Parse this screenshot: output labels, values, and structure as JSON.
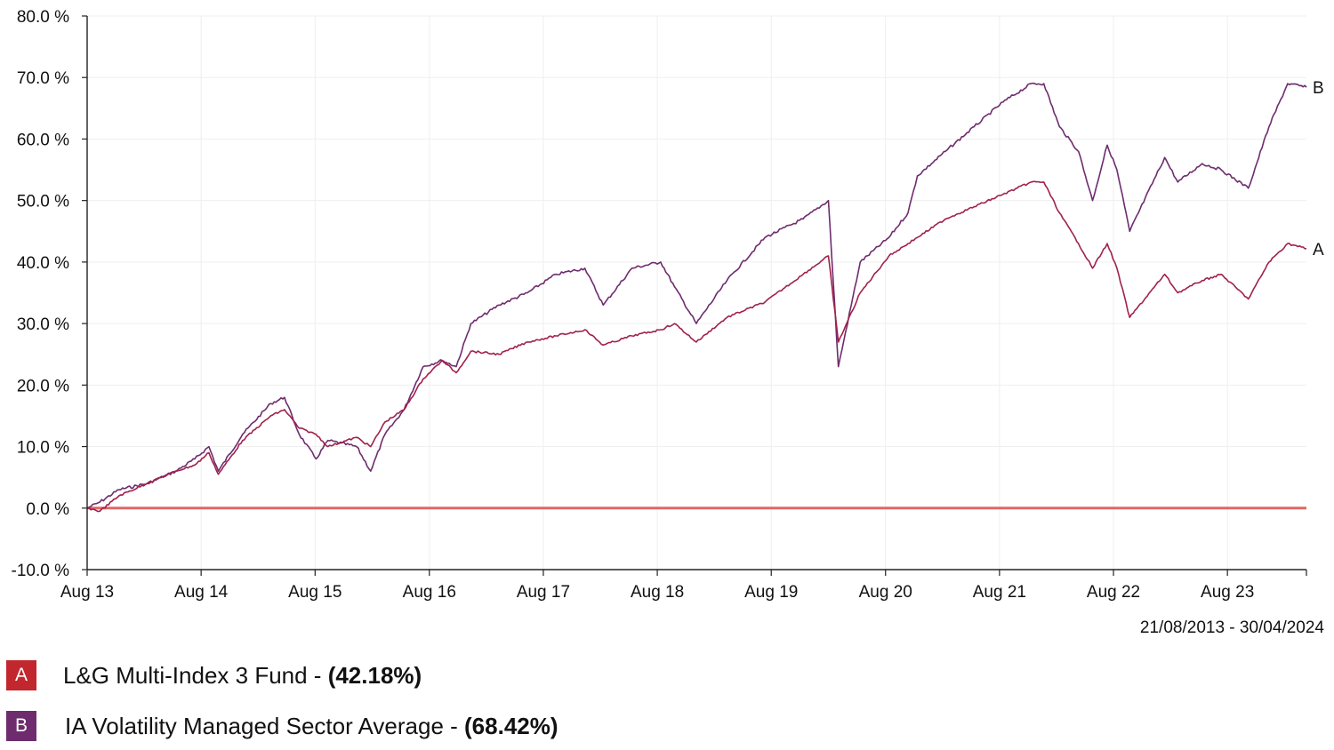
{
  "chart_data": {
    "type": "line",
    "y_ticks": [
      "80.0 %",
      "70.0 %",
      "60.0 %",
      "50.0 %",
      "40.0 %",
      "30.0 %",
      "20.0 %",
      "10.0 %",
      "0.0 %",
      "-10.0 %"
    ],
    "ylim": [
      -10,
      80
    ],
    "x_ticks": [
      "Aug 13",
      "Aug 14",
      "Aug 15",
      "Aug 16",
      "Aug 17",
      "Aug 18",
      "Aug 19",
      "Aug 20",
      "Aug 21",
      "Aug 22",
      "Aug 23"
    ],
    "xlim": [
      "2013-08-21",
      "2024-04-30"
    ],
    "date_range": "21/08/2013 - 30/04/2024",
    "zero_line_color": "#e06666",
    "grid": true,
    "series": [
      {
        "letter": "A",
        "name": "L&G Multi-Index 3 Fund",
        "value_label": "(42.18%)",
        "color": "#a0214a",
        "badge_color": "#c1272d",
        "points": [
          [
            "2013-08-21",
            0
          ],
          [
            "2013-10-01",
            -0.5
          ],
          [
            "2013-12-01",
            2
          ],
          [
            "2014-03-01",
            4
          ],
          [
            "2014-06-01",
            6
          ],
          [
            "2014-08-01",
            7
          ],
          [
            "2014-09-15",
            9
          ],
          [
            "2014-10-15",
            5.5
          ],
          [
            "2015-01-01",
            11
          ],
          [
            "2015-04-01",
            15
          ],
          [
            "2015-05-15",
            16
          ],
          [
            "2015-07-01",
            13
          ],
          [
            "2015-08-24",
            12
          ],
          [
            "2015-10-01",
            10
          ],
          [
            "2016-01-01",
            11.5
          ],
          [
            "2016-02-15",
            10
          ],
          [
            "2016-04-01",
            14
          ],
          [
            "2016-06-01",
            16
          ],
          [
            "2016-08-01",
            21
          ],
          [
            "2016-10-01",
            24
          ],
          [
            "2016-11-15",
            22
          ],
          [
            "2017-01-01",
            25.5
          ],
          [
            "2017-04-01",
            25
          ],
          [
            "2017-07-01",
            27
          ],
          [
            "2017-10-01",
            28
          ],
          [
            "2018-01-01",
            29
          ],
          [
            "2018-03-01",
            26.5
          ],
          [
            "2018-06-01",
            28
          ],
          [
            "2018-09-01",
            29
          ],
          [
            "2018-10-15",
            30
          ],
          [
            "2018-12-24",
            27
          ],
          [
            "2019-04-01",
            31
          ],
          [
            "2019-08-01",
            33.5
          ],
          [
            "2019-12-01",
            38
          ],
          [
            "2020-02-20",
            41
          ],
          [
            "2020-03-23",
            27
          ],
          [
            "2020-06-01",
            35
          ],
          [
            "2020-09-01",
            41
          ],
          [
            "2020-11-01",
            43
          ],
          [
            "2020-12-01",
            44
          ],
          [
            "2021-03-01",
            47
          ],
          [
            "2021-06-01",
            49
          ],
          [
            "2021-09-01",
            51
          ],
          [
            "2021-12-01",
            53
          ],
          [
            "2022-01-10",
            53
          ],
          [
            "2022-03-01",
            48
          ],
          [
            "2022-05-01",
            43
          ],
          [
            "2022-06-15",
            39
          ],
          [
            "2022-08-01",
            43
          ],
          [
            "2022-09-01",
            39
          ],
          [
            "2022-10-12",
            31
          ],
          [
            "2023-02-01",
            38
          ],
          [
            "2023-03-15",
            35
          ],
          [
            "2023-06-01",
            37
          ],
          [
            "2023-08-01",
            38
          ],
          [
            "2023-10-27",
            34
          ],
          [
            "2024-01-01",
            40
          ],
          [
            "2024-03-01",
            43
          ],
          [
            "2024-04-30",
            42.18
          ]
        ]
      },
      {
        "letter": "B",
        "name": "IA Volatility Managed Sector Average",
        "value_label": "(68.42%)",
        "color": "#6e2c6e",
        "badge_color": "#6e2c6e",
        "points": [
          [
            "2013-08-21",
            0
          ],
          [
            "2013-10-01",
            1
          ],
          [
            "2013-12-01",
            3
          ],
          [
            "2014-03-01",
            4
          ],
          [
            "2014-06-01",
            6
          ],
          [
            "2014-08-01",
            8
          ],
          [
            "2014-09-15",
            10
          ],
          [
            "2014-10-15",
            6
          ],
          [
            "2015-01-01",
            12
          ],
          [
            "2015-04-01",
            17
          ],
          [
            "2015-05-15",
            18
          ],
          [
            "2015-07-01",
            12
          ],
          [
            "2015-08-24",
            8
          ],
          [
            "2015-10-01",
            11
          ],
          [
            "2016-01-01",
            10
          ],
          [
            "2016-02-15",
            6
          ],
          [
            "2016-04-01",
            12
          ],
          [
            "2016-06-01",
            16
          ],
          [
            "2016-08-01",
            23
          ],
          [
            "2016-10-01",
            24
          ],
          [
            "2016-11-15",
            23
          ],
          [
            "2017-01-01",
            30
          ],
          [
            "2017-04-01",
            33
          ],
          [
            "2017-07-01",
            35
          ],
          [
            "2017-10-01",
            38
          ],
          [
            "2018-01-01",
            39
          ],
          [
            "2018-03-01",
            33
          ],
          [
            "2018-06-01",
            39
          ],
          [
            "2018-09-01",
            40
          ],
          [
            "2018-10-15",
            36
          ],
          [
            "2018-12-24",
            30
          ],
          [
            "2019-04-01",
            37
          ],
          [
            "2019-08-01",
            44
          ],
          [
            "2019-12-01",
            47
          ],
          [
            "2020-02-20",
            50
          ],
          [
            "2020-03-23",
            23
          ],
          [
            "2020-06-01",
            40
          ],
          [
            "2020-09-01",
            44
          ],
          [
            "2020-11-01",
            48
          ],
          [
            "2020-12-01",
            54
          ],
          [
            "2021-03-01",
            58
          ],
          [
            "2021-06-01",
            62
          ],
          [
            "2021-09-01",
            66
          ],
          [
            "2021-12-01",
            69
          ],
          [
            "2022-01-10",
            69
          ],
          [
            "2022-03-01",
            62
          ],
          [
            "2022-05-01",
            58
          ],
          [
            "2022-06-15",
            50
          ],
          [
            "2022-08-01",
            59
          ],
          [
            "2022-09-01",
            55
          ],
          [
            "2022-10-12",
            45
          ],
          [
            "2023-02-01",
            57
          ],
          [
            "2023-03-15",
            53
          ],
          [
            "2023-06-01",
            56
          ],
          [
            "2023-08-01",
            55
          ],
          [
            "2023-10-27",
            52
          ],
          [
            "2024-01-01",
            62
          ],
          [
            "2024-03-01",
            69
          ],
          [
            "2024-04-30",
            68.42
          ]
        ]
      }
    ]
  }
}
